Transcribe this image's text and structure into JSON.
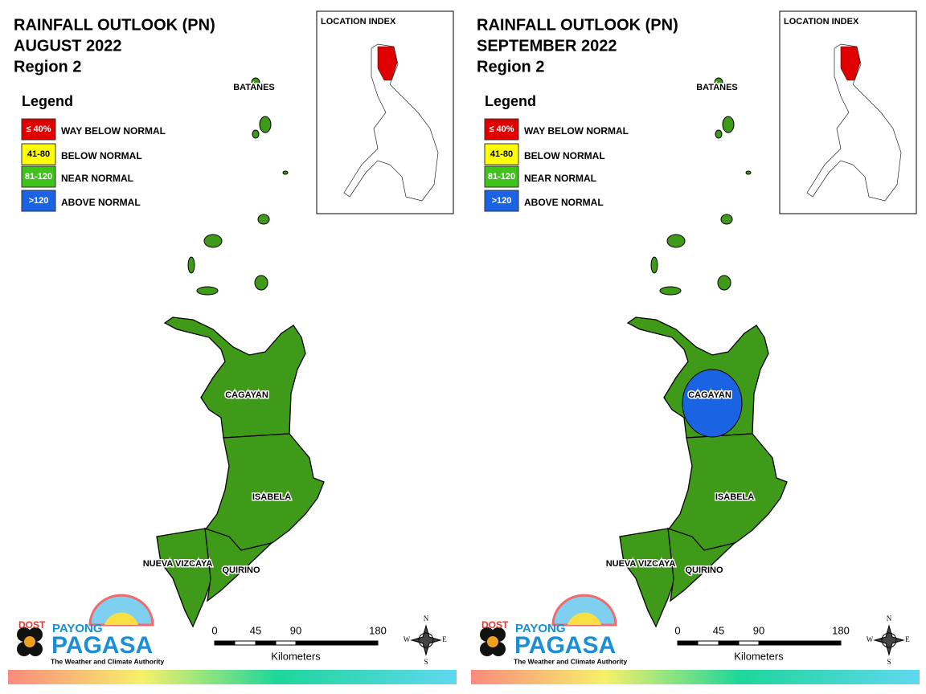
{
  "panels": [
    {
      "title": [
        "RAINFALL OUTLOOK (PN)",
        "AUGUST 2022",
        "Region 2"
      ],
      "legend_title": "Legend",
      "legend": [
        {
          "swatch": "≤ 40%",
          "label": "WAY BELOW NORMAL",
          "color": "#e00000"
        },
        {
          "swatch": "41-80",
          "label": "BELOW NORMAL",
          "color": "#ffff00"
        },
        {
          "swatch": "81-120",
          "label": "NEAR NORMAL",
          "color": "#3fc31a"
        },
        {
          "swatch": ">120",
          "label": "ABOVE NORMAL",
          "color": "#1a63e3"
        }
      ],
      "inset_title": "LOCATION INDEX",
      "province_color": "#3f9a1a",
      "provinces": [
        "BATANES",
        "CAGAYAN",
        "ISABELA",
        "NUEVA VIZCAYA",
        "QUIRINO"
      ],
      "scale": {
        "ticks": [
          "0",
          "45",
          "90",
          "180"
        ],
        "unit": "Kilometers"
      },
      "compass": [
        "N",
        "E",
        "S",
        "W"
      ],
      "logo": {
        "agency": "DOST",
        "brand_top": "PAYONG",
        "brand": "PAGASA",
        "tagline": "The Weather and Climate Authority"
      }
    },
    {
      "title": [
        "RAINFALL OUTLOOK (PN)",
        "SEPTEMBER 2022",
        "Region 2"
      ],
      "legend_title": "Legend",
      "legend": [
        {
          "swatch": "≤ 40%",
          "label": "WAY BELOW NORMAL",
          "color": "#e00000"
        },
        {
          "swatch": "41-80",
          "label": "BELOW NORMAL",
          "color": "#ffff00"
        },
        {
          "swatch": "81-120",
          "label": "NEAR NORMAL",
          "color": "#3fc31a"
        },
        {
          "swatch": ">120",
          "label": "ABOVE NORMAL",
          "color": "#1a63e3"
        }
      ],
      "inset_title": "LOCATION INDEX",
      "province_color": "#3f9a1a",
      "overlay_color": "#1a63e3",
      "provinces": [
        "BATANES",
        "CAGAYAN",
        "ISABELA",
        "NUEVA VIZCAYA",
        "QUIRINO"
      ],
      "scale": {
        "ticks": [
          "0",
          "45",
          "90",
          "180"
        ],
        "unit": "Kilometers"
      },
      "compass": [
        "N",
        "E",
        "S",
        "W"
      ],
      "logo": {
        "agency": "DOST",
        "brand_top": "PAYONG",
        "brand": "PAGASA",
        "tagline": "The Weather and Climate Authority"
      }
    }
  ]
}
